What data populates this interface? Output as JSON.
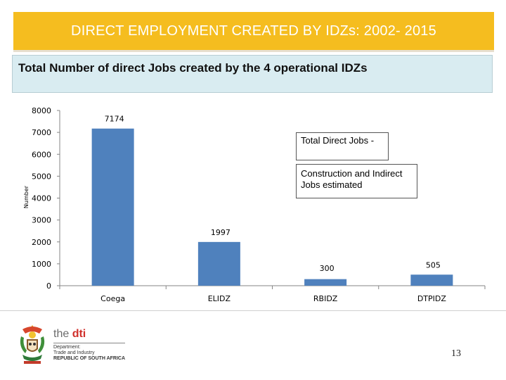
{
  "header": {
    "title": "DIRECT EMPLOYMENT CREATED BY IDZs: 2002- 2015",
    "subtitle": "Total Number of direct Jobs created by the 4 operational IDZs"
  },
  "colors": {
    "title_bg": "#f5bd1f",
    "subtitle_bg": "#d9ecf1",
    "bar": "#4f81bd"
  },
  "chart_data": {
    "type": "bar",
    "categories": [
      "Coega",
      "ELIDZ",
      "RBIDZ",
      "DTPIDZ"
    ],
    "values": [
      7174,
      1997,
      300,
      505
    ],
    "data_labels": [
      "7174",
      "1997",
      "300",
      "505"
    ],
    "ylabel": "Number",
    "ylim": [
      0,
      8000
    ],
    "yticks": [
      0,
      1000,
      2000,
      3000,
      4000,
      5000,
      6000,
      7000,
      8000
    ],
    "grid": false,
    "legend": "none"
  },
  "callouts": {
    "total": "Total Direct Jobs -",
    "construction": "Construction and Indirect Jobs  estimated"
  },
  "footer": {
    "brand_the": "the",
    "brand_dti": "dti",
    "dept_line1": "Department:",
    "dept_line2": "Trade and Industry",
    "dept_line3": "REPUBLIC OF SOUTH AFRICA",
    "page_number": "13",
    "logo_icon": "south-africa-coat-of-arms-icon"
  }
}
